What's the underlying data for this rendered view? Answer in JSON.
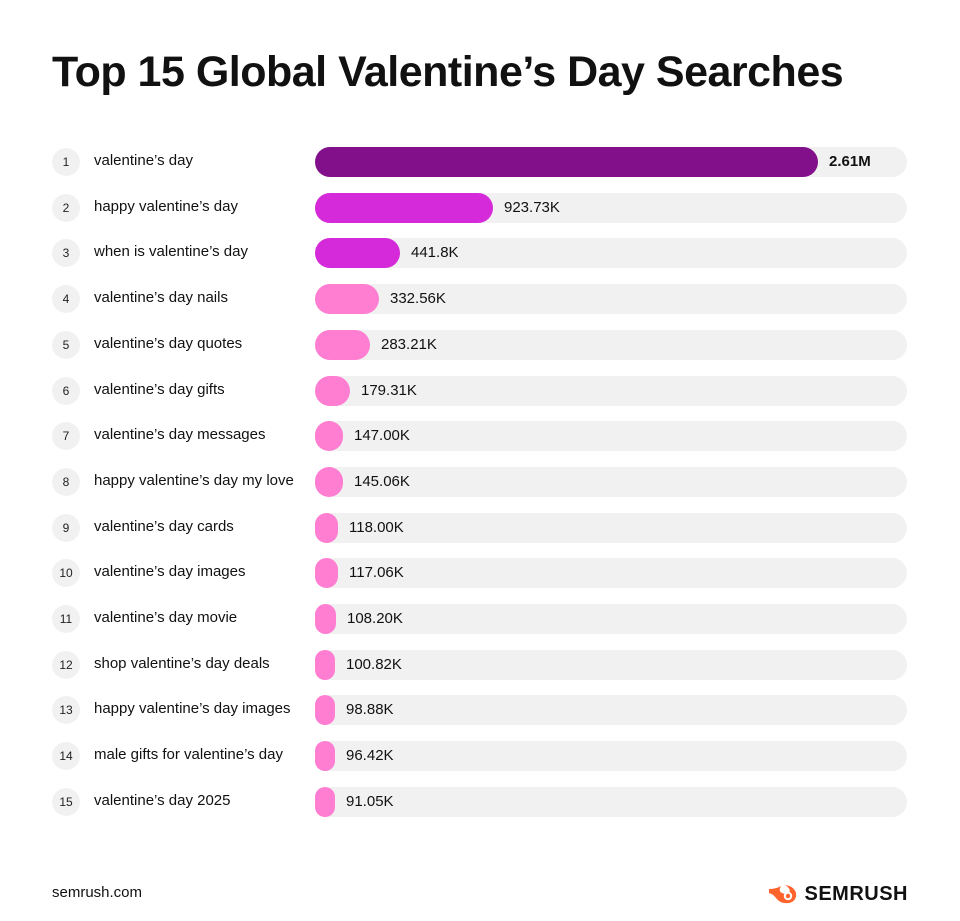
{
  "title": "Top 15 Global Valentine’s Day Searches",
  "footer": {
    "source": "semrush.com",
    "brand": "SEMRUSH"
  },
  "colors": {
    "track": "#f1f1f1",
    "tier1": "#82108a",
    "tier2": "#d42ad9",
    "tier3": "#ff7ed2"
  },
  "chart_data": {
    "type": "bar",
    "orientation": "horizontal",
    "title": "Top 15 Global Valentine’s Day Searches",
    "categories": [
      "valentine’s day",
      "happy valentine’s day",
      "when is valentine’s day",
      "valentine’s day nails",
      "valentine’s day quotes",
      "valentine’s day gifts",
      "valentine’s day messages",
      "happy valentine’s day my love",
      "valentine’s day cards",
      "valentine’s day images",
      "valentine’s day movie",
      "shop valentine’s day deals",
      "happy valentine’s day images",
      "male gifts for valentine’s day",
      "valentine’s day 2025"
    ],
    "ranks": [
      "1",
      "2",
      "3",
      "4",
      "5",
      "6",
      "7",
      "8",
      "9",
      "10",
      "11",
      "12",
      "13",
      "14",
      "15"
    ],
    "values": [
      2610000,
      923730,
      441800,
      332560,
      283210,
      179310,
      147000,
      145060,
      118000,
      117060,
      108200,
      100820,
      98880,
      96420,
      91050
    ],
    "value_labels": [
      "2.61M",
      "923.73K",
      "441.8K",
      "332.56K",
      "283.21K",
      "179.31K",
      "147.00K",
      "145.06K",
      "118.00K",
      "117.06K",
      "108.20K",
      "100.82K",
      "98.88K",
      "96.42K",
      "91.05K"
    ],
    "xlim": [
      0,
      3000000
    ]
  }
}
